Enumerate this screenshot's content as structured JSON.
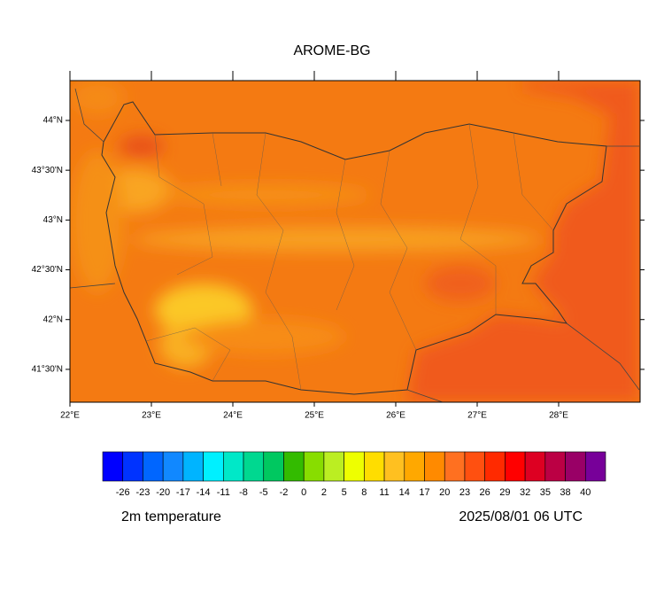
{
  "title": "AROME-BG",
  "map": {
    "xlim": [
      22,
      29
    ],
    "ylim": [
      41.17,
      44.4
    ],
    "xticks": [
      {
        "value": 22,
        "label": "22°E"
      },
      {
        "value": 23,
        "label": "23°E"
      },
      {
        "value": 24,
        "label": "24°E"
      },
      {
        "value": 25,
        "label": "25°E"
      },
      {
        "value": 26,
        "label": "26°E"
      },
      {
        "value": 27,
        "label": "27°E"
      },
      {
        "value": 28,
        "label": "28°E"
      }
    ],
    "yticks": [
      {
        "value": 41.5,
        "label": "41°30'N"
      },
      {
        "value": 42,
        "label": "42°N"
      },
      {
        "value": 42.5,
        "label": "42°30'N"
      },
      {
        "value": 43,
        "label": "43°N"
      },
      {
        "value": 43.5,
        "label": "43°30'N"
      },
      {
        "value": 44,
        "label": "44°N"
      }
    ]
  },
  "colorbar": {
    "levels": [
      -26,
      -23,
      -20,
      -17,
      -14,
      -11,
      -8,
      -5,
      -2,
      0,
      2,
      5,
      8,
      11,
      14,
      17,
      20,
      23,
      26,
      29,
      32,
      35,
      38,
      40
    ],
    "colors": [
      "#0000ff",
      "#0033ff",
      "#0066ff",
      "#1188ff",
      "#00b4ff",
      "#00f0ff",
      "#00e8c8",
      "#00d890",
      "#00c860",
      "#33bb00",
      "#88dd00",
      "#bbee22",
      "#eeff00",
      "#ffdd00",
      "#ffc020",
      "#ffa800",
      "#ff8a00",
      "#ff7020",
      "#ff5010",
      "#ff2a00",
      "#ff0000",
      "#dd0022",
      "#bb0044",
      "#990066",
      "#770099"
    ]
  },
  "field_label": "2m temperature",
  "valid_time": "2025/08/01 06 UTC"
}
